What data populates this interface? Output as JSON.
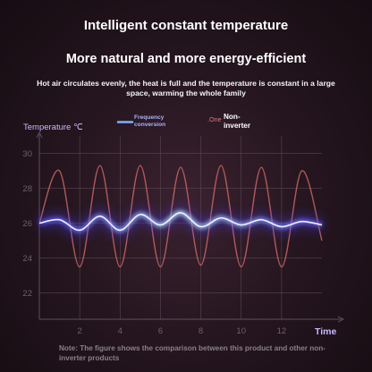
{
  "heading": "Intelligent constant temperature",
  "subheading": "More natural and more energy-efficient",
  "description": "Hot air circulates evenly, the heat is full and the temperature is constant in a large space, warming the whole family",
  "note": "Note: The figure shows the comparison between this product and other non-inverter products",
  "chart_data": {
    "type": "line",
    "ylabel": "Temperature ℃",
    "xlabel": "Time",
    "xlim": [
      0,
      14
    ],
    "ylim": [
      20.5,
      31
    ],
    "x_ticks": [
      "2",
      "4",
      "6",
      "8",
      "10",
      "12"
    ],
    "y_ticks": [
      "30",
      "28",
      "26",
      "24",
      "22"
    ],
    "grid": true,
    "series": [
      {
        "name": "Frequency conversion",
        "legend_prefix": "",
        "color": "#7f86ff",
        "x": [
          0,
          1,
          2,
          3,
          4,
          5,
          6,
          7,
          8,
          9,
          10,
          11,
          12,
          13,
          14
        ],
        "y": [
          26.0,
          26.2,
          25.6,
          26.4,
          25.6,
          26.5,
          25.9,
          26.6,
          25.8,
          26.3,
          25.9,
          26.2,
          25.8,
          26.1,
          25.9
        ]
      },
      {
        "name": "Non-inverter",
        "legend_prefix": ".One",
        "color": "#c96565",
        "x": [
          0,
          1,
          2,
          3,
          4,
          5,
          6,
          7,
          8,
          9,
          10,
          11,
          12,
          13,
          14
        ],
        "y": [
          26.0,
          29.0,
          23.5,
          29.3,
          23.5,
          29.3,
          23.5,
          29.2,
          23.6,
          29.3,
          23.5,
          29.2,
          23.5,
          29.0,
          25.0
        ]
      }
    ]
  }
}
